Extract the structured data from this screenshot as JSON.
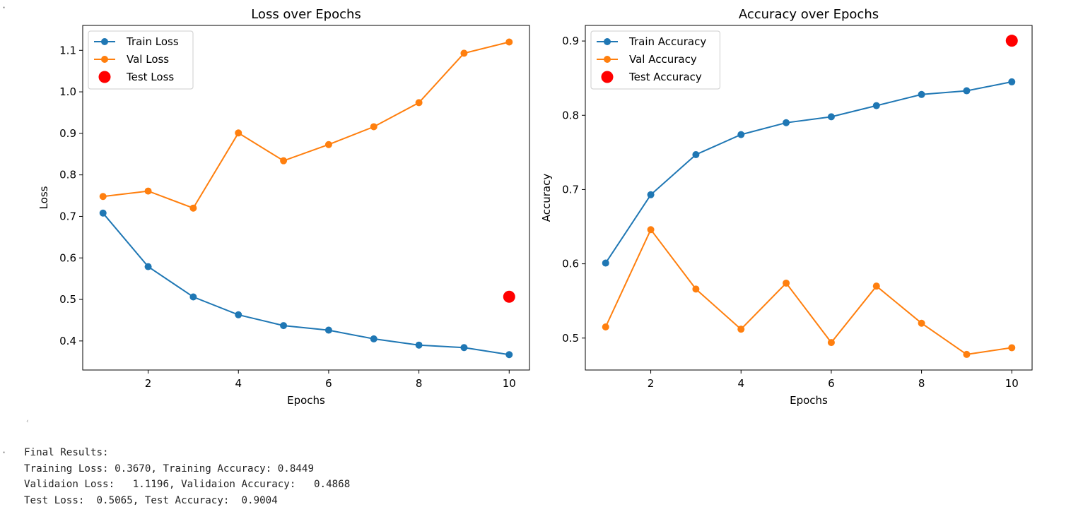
{
  "cell": {
    "top_marker": "·",
    "output_marker": "·",
    "collapse_icon": "collapse-arrow-icon",
    "collapse_glyph": "‹"
  },
  "colors": {
    "train": "#1f77b4",
    "val": "#ff7f0e",
    "test": "#ff0000",
    "axes": "#000000"
  },
  "chart_data": [
    {
      "type": "line",
      "title": "Loss over Epochs",
      "xlabel": "Epochs",
      "ylabel": "Loss",
      "xlim": [
        0.55,
        10.45
      ],
      "ylim": [
        0.33,
        1.16
      ],
      "xticks": [
        2,
        4,
        6,
        8,
        10
      ],
      "yticks": [
        0.4,
        0.5,
        0.6,
        0.7,
        0.8,
        0.9,
        1.0,
        1.1
      ],
      "ytick_labels": [
        "0.4",
        "0.5",
        "0.6",
        "0.7",
        "0.8",
        "0.9",
        "1.0",
        "1.1"
      ],
      "grid": false,
      "legend_position": "top-left",
      "x": [
        1,
        2,
        3,
        4,
        5,
        6,
        7,
        8,
        9,
        10
      ],
      "series": [
        {
          "name": "Train Loss",
          "color_key": "train",
          "values": [
            0.708,
            0.579,
            0.506,
            0.463,
            0.437,
            0.426,
            0.405,
            0.39,
            0.384,
            0.367
          ]
        },
        {
          "name": "Val Loss",
          "color_key": "val",
          "values": [
            0.748,
            0.761,
            0.72,
            0.901,
            0.834,
            0.873,
            0.916,
            0.974,
            1.093,
            1.12
          ]
        }
      ],
      "test_point": {
        "name": "Test Loss",
        "color_key": "test",
        "x": 10,
        "y": 0.5065
      }
    },
    {
      "type": "line",
      "title": "Accuracy over Epochs",
      "xlabel": "Epochs",
      "ylabel": "Accuracy",
      "xlim": [
        0.55,
        10.45
      ],
      "ylim": [
        0.457,
        0.921
      ],
      "xticks": [
        2,
        4,
        6,
        8,
        10
      ],
      "yticks": [
        0.5,
        0.6,
        0.7,
        0.8,
        0.9
      ],
      "ytick_labels": [
        "0.5",
        "0.6",
        "0.7",
        "0.8",
        "0.9"
      ],
      "grid": false,
      "legend_position": "top-left",
      "x": [
        1,
        2,
        3,
        4,
        5,
        6,
        7,
        8,
        9,
        10
      ],
      "series": [
        {
          "name": "Train Accuracy",
          "color_key": "train",
          "values": [
            0.601,
            0.693,
            0.747,
            0.774,
            0.79,
            0.798,
            0.813,
            0.828,
            0.833,
            0.845
          ]
        },
        {
          "name": "Val Accuracy",
          "color_key": "val",
          "values": [
            0.515,
            0.646,
            0.566,
            0.512,
            0.574,
            0.494,
            0.57,
            0.52,
            0.478,
            0.487
          ]
        }
      ],
      "test_point": {
        "name": "Test Accuracy",
        "color_key": "test",
        "x": 10,
        "y": 0.9004
      }
    }
  ],
  "output": {
    "lines": [
      "Final Results:",
      "Training Loss: 0.3670, Training Accuracy: 0.8449",
      "Validaion Loss:   1.1196, Validaion Accuracy:   0.4868",
      "Test Loss:  0.5065, Test Accuracy:  0.9004"
    ]
  }
}
